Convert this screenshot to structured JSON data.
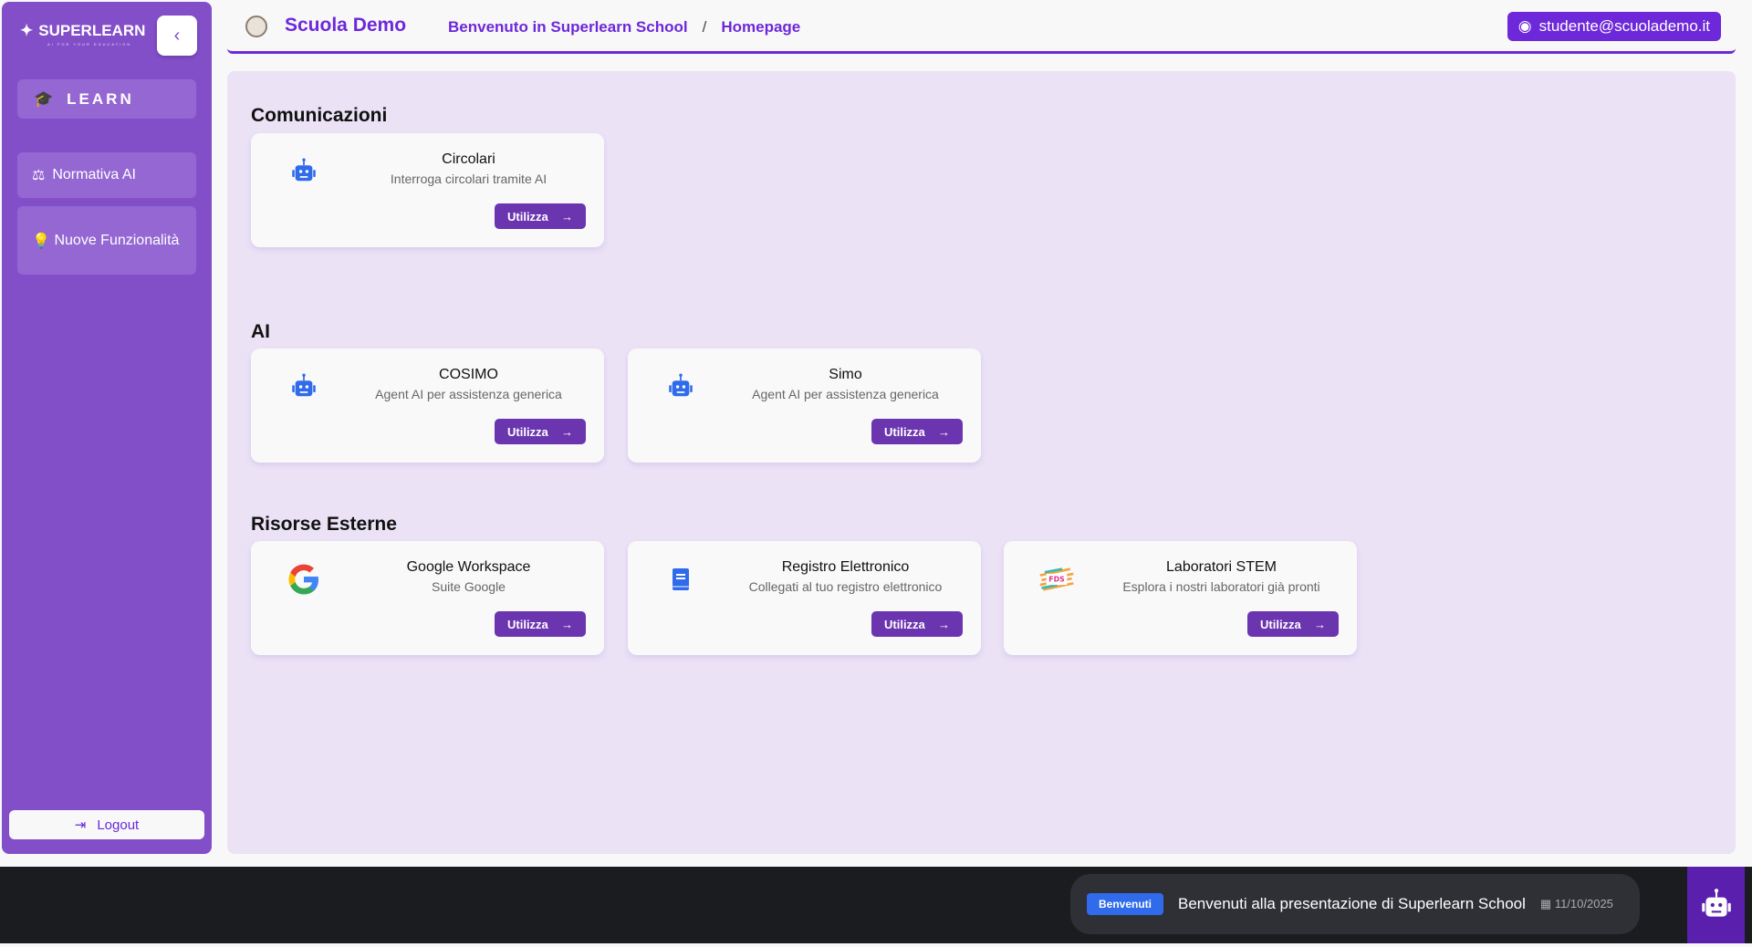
{
  "sidebar": {
    "brand": "SUPERLEARN",
    "brand_tagline": "AI FOR YOUR EDUCATION",
    "learn": "LEARN",
    "items": [
      {
        "label": "Normativa AI"
      },
      {
        "label": "Nuove Funzionalità"
      }
    ],
    "logout": "Logout"
  },
  "header": {
    "school": "Scuola Demo",
    "breadcrumb": [
      "Benvenuto in Superlearn School",
      "Homepage"
    ],
    "separator": "/",
    "user": "studente@scuolademo.it"
  },
  "sections": [
    {
      "title": "Comunicazioni",
      "cards": [
        {
          "title": "Circolari",
          "desc": "Interroga circolari tramite AI",
          "button": "Utilizza",
          "icon": "robot-icon"
        }
      ]
    },
    {
      "title": "AI",
      "cards": [
        {
          "title": "COSIMO",
          "desc": "Agent AI per assistenza generica",
          "button": "Utilizza",
          "icon": "robot-icon"
        },
        {
          "title": "Simo",
          "desc": "Agent AI per assistenza generica",
          "button": "Utilizza",
          "icon": "robot-icon"
        }
      ]
    },
    {
      "title": "Risorse Esterne",
      "cards": [
        {
          "title": "Google Workspace",
          "desc": "Suite Google",
          "button": "Utilizza",
          "icon": "google-icon"
        },
        {
          "title": "Registro Elettronico",
          "desc": "Collegati al tuo registro elettronico",
          "button": "Utilizza",
          "icon": "book-icon"
        },
        {
          "title": "Laboratori STEM",
          "desc": "Esplora i nostri laboratori già pronti",
          "button": "Utilizza",
          "icon": "stem-logo",
          "logo_text": "FDS"
        }
      ]
    }
  ],
  "news": {
    "badge": "Benvenuti",
    "text": "Benvenuti alla presentazione di Superlearn School",
    "date": "11/10/2025"
  },
  "colors": {
    "accent": "#6d28d9",
    "sidebar": "#834fc9",
    "robot": "#2f6bea"
  }
}
